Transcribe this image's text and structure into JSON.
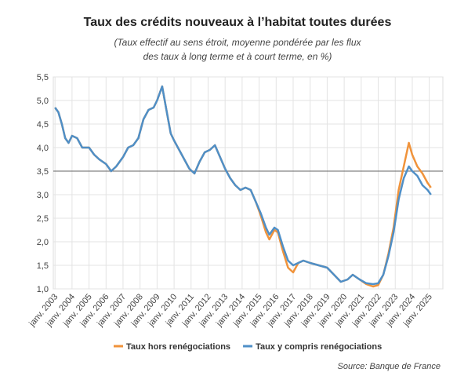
{
  "chart_data": {
    "type": "line",
    "title": "Taux des crédits nouveaux à l’habitat toutes durées",
    "subtitle": [
      "(Taux effectif au sens étroit, moyenne pondérée par les flux",
      "des taux à long terme et à court terme, en %)"
    ],
    "source": "Source: Banque de France",
    "x": [
      2003.0,
      2003.2,
      2003.4,
      2003.6,
      2003.8,
      2004.0,
      2004.3,
      2004.6,
      2005.0,
      2005.3,
      2005.6,
      2006.0,
      2006.3,
      2006.6,
      2007.0,
      2007.3,
      2007.6,
      2007.9,
      2008.2,
      2008.5,
      2008.8,
      2009.0,
      2009.3,
      2009.5,
      2009.8,
      2010.0,
      2010.3,
      2010.6,
      2010.9,
      2011.2,
      2011.5,
      2011.8,
      2012.1,
      2012.4,
      2012.7,
      2013.0,
      2013.3,
      2013.6,
      2013.9,
      2014.2,
      2014.5,
      2014.8,
      2015.1,
      2015.4,
      2015.6,
      2015.9,
      2016.1,
      2016.4,
      2016.7,
      2017.0,
      2017.3,
      2017.6,
      2018.0,
      2018.5,
      2019.0,
      2019.4,
      2019.8,
      2020.2,
      2020.5,
      2020.9,
      2021.3,
      2021.7,
      2022.0,
      2022.3,
      2022.6,
      2022.9,
      2023.2,
      2023.5,
      2023.8,
      2024.0,
      2024.3,
      2024.6,
      2024.9,
      2025.1
    ],
    "series": [
      {
        "name": "Taux hors renégociations",
        "color": "#f0933b",
        "values": [
          4.85,
          4.75,
          4.5,
          4.2,
          4.1,
          4.25,
          4.2,
          4.0,
          4.0,
          3.85,
          3.75,
          3.65,
          3.5,
          3.6,
          3.8,
          4.0,
          4.05,
          4.2,
          4.6,
          4.8,
          4.85,
          5.0,
          5.3,
          4.9,
          4.3,
          4.15,
          3.95,
          3.75,
          3.55,
          3.45,
          3.7,
          3.9,
          3.95,
          4.05,
          3.8,
          3.55,
          3.35,
          3.2,
          3.1,
          3.15,
          3.1,
          2.85,
          2.55,
          2.2,
          2.05,
          2.25,
          2.2,
          1.8,
          1.45,
          1.35,
          1.55,
          1.6,
          1.55,
          1.5,
          1.45,
          1.3,
          1.15,
          1.2,
          1.3,
          1.2,
          1.1,
          1.05,
          1.08,
          1.3,
          1.75,
          2.3,
          3.1,
          3.6,
          4.1,
          3.85,
          3.6,
          3.45,
          3.25,
          3.15
        ]
      },
      {
        "name": "Taux y compris renégociations",
        "color": "#4f8fc7",
        "values": [
          4.85,
          4.75,
          4.5,
          4.2,
          4.1,
          4.25,
          4.2,
          4.0,
          4.0,
          3.85,
          3.75,
          3.65,
          3.5,
          3.6,
          3.8,
          4.0,
          4.05,
          4.2,
          4.6,
          4.8,
          4.85,
          5.0,
          5.3,
          4.9,
          4.3,
          4.15,
          3.95,
          3.75,
          3.55,
          3.45,
          3.7,
          3.9,
          3.95,
          4.05,
          3.8,
          3.55,
          3.35,
          3.2,
          3.1,
          3.15,
          3.1,
          2.85,
          2.6,
          2.3,
          2.15,
          2.3,
          2.25,
          1.9,
          1.6,
          1.5,
          1.55,
          1.6,
          1.55,
          1.5,
          1.45,
          1.3,
          1.15,
          1.2,
          1.3,
          1.2,
          1.12,
          1.1,
          1.12,
          1.3,
          1.7,
          2.2,
          2.9,
          3.35,
          3.6,
          3.5,
          3.4,
          3.2,
          3.1,
          3.0
        ]
      }
    ],
    "reference_line": 3.5,
    "xlim": [
      2002.9,
      2025.8
    ],
    "xticks": [
      {
        "value": 2003,
        "label": "janv. 2003"
      },
      {
        "value": 2004,
        "label": "janv. 2004"
      },
      {
        "value": 2005,
        "label": "janv. 2005"
      },
      {
        "value": 2006,
        "label": "janv. 2006"
      },
      {
        "value": 2007,
        "label": "janv. 2007"
      },
      {
        "value": 2008,
        "label": "janv. 2008"
      },
      {
        "value": 2009,
        "label": "janv. 2009"
      },
      {
        "value": 2010,
        "label": "janv. 2010"
      },
      {
        "value": 2011,
        "label": "janv. 2011"
      },
      {
        "value": 2012,
        "label": "janv. 2012"
      },
      {
        "value": 2013,
        "label": "janv. 2013"
      },
      {
        "value": 2014,
        "label": "janv. 2014"
      },
      {
        "value": 2015,
        "label": "janv. 2015"
      },
      {
        "value": 2016,
        "label": "janv. 2016"
      },
      {
        "value": 2017,
        "label": "janv. 2017"
      },
      {
        "value": 2018,
        "label": "janv. 2018"
      },
      {
        "value": 2019,
        "label": "janv. 2019"
      },
      {
        "value": 2020,
        "label": "janv. 2020"
      },
      {
        "value": 2021,
        "label": "janv. 2021"
      },
      {
        "value": 2022,
        "label": "janv. 2022"
      },
      {
        "value": 2023,
        "label": "janv. 2023"
      },
      {
        "value": 2024,
        "label": "janv. 2024"
      },
      {
        "value": 2025,
        "label": "janv. 2025"
      }
    ],
    "ylim": [
      1.0,
      5.5
    ],
    "yticks": [
      {
        "value": 1.0,
        "label": "1,0"
      },
      {
        "value": 1.5,
        "label": "1,5"
      },
      {
        "value": 2.0,
        "label": "2,0"
      },
      {
        "value": 2.5,
        "label": "2,5"
      },
      {
        "value": 3.0,
        "label": "3,0"
      },
      {
        "value": 3.5,
        "label": "3,5"
      },
      {
        "value": 4.0,
        "label": "4,0"
      },
      {
        "value": 4.5,
        "label": "4,5"
      },
      {
        "value": 5.0,
        "label": "5,0"
      },
      {
        "value": 5.5,
        "label": "5,5"
      }
    ],
    "grid": true,
    "legend": "bottom"
  }
}
